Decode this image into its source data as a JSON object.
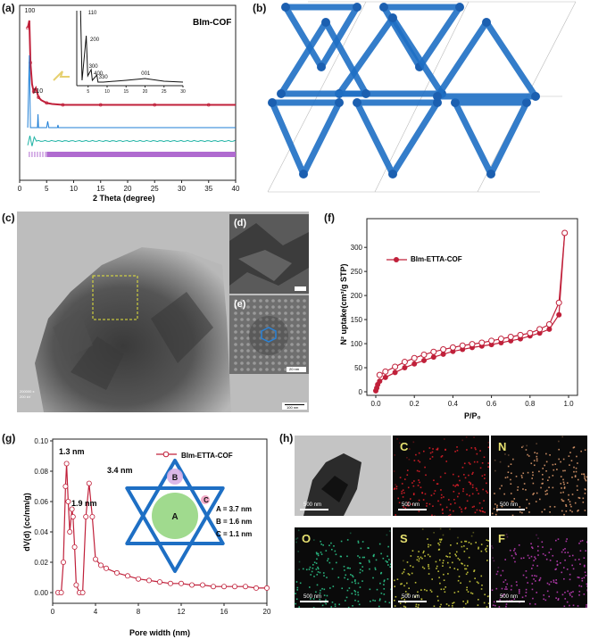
{
  "panels": {
    "a": "(a)",
    "b": "(b)",
    "c": "(c)",
    "d": "(d)",
    "e": "(e)",
    "f": "(f)",
    "g": "(g)",
    "h": "(h)"
  },
  "colors": {
    "exp": "#c0203a",
    "sim_blue": "#1f7fd6",
    "sim_teal": "#1fb3a5",
    "sim_purple": "#b06bd0",
    "framework": "#1e6fc4",
    "maps": {
      "C": "#e8202a",
      "N": "#e6a070",
      "O": "#2ecf90",
      "S": "#d8d840",
      "F": "#c83fc0"
    }
  },
  "panel_a": {
    "title": "BIm-COF",
    "xlabel": "2 Theta (degree)",
    "xticks": [
      "0",
      "5",
      "10",
      "15",
      "20",
      "25",
      "30",
      "35",
      "40"
    ],
    "peaks_main": [
      "100",
      "110"
    ],
    "inset_peaks": [
      "110",
      "200",
      "300",
      "400",
      "330",
      "001"
    ],
    "inset_xticks": [
      "5",
      "10",
      "15",
      "20",
      "25",
      "30"
    ]
  },
  "panel_e": {
    "scale": "20 nm"
  },
  "panel_d": {
    "scale": "5 nm"
  },
  "panel_c": {
    "scale": "100 nm",
    "meta1": "200000 x",
    "meta2": "200 kV"
  },
  "panel_f": {
    "legend": "BIm-ETTA-COF",
    "ylabel": "N² uptake(cm³/g STP)",
    "xlabel": "P/P₀",
    "yticks": [
      "0",
      "50",
      "100",
      "150",
      "200",
      "250",
      "300"
    ],
    "xticks": [
      "0.0",
      "0.2",
      "0.4",
      "0.6",
      "0.8",
      "1.0"
    ]
  },
  "panel_g": {
    "legend": "BIm-ETTA-COF",
    "ylabel": "dV(d) (cc/nm/g)",
    "xlabel": "Pore width (nm)",
    "yticks": [
      "0.00",
      "0.02",
      "0.04",
      "0.06",
      "0.08",
      "0.10"
    ],
    "xticks": [
      "0",
      "4",
      "8",
      "12",
      "16",
      "20"
    ],
    "annotations": [
      "1.3 nm",
      "1.9 nm",
      "3.4 nm"
    ],
    "pore_labels": {
      "A": "A",
      "B": "B",
      "C": "C"
    },
    "pore_sizes": [
      "A = 3.7 nm",
      "B = 1.6 nm",
      "C = 1.1 nm"
    ]
  },
  "panel_h": {
    "tiles": [
      "C",
      "N",
      "O",
      "S",
      "F"
    ],
    "scale": "500 nm"
  },
  "chart_data": [
    {
      "type": "line",
      "title": "BIm-COF",
      "xlabel": "2 Theta (degree)",
      "ylabel": "",
      "xlim": [
        0,
        40
      ],
      "series": [
        {
          "x": [
            1.5,
            1.8,
            2.0,
            2.3,
            2.6,
            3.0,
            3.5,
            4.0,
            5,
            6,
            8,
            10,
            15,
            20,
            25,
            30,
            35,
            40
          ],
          "y": [
            0.92,
            1.0,
            0.55,
            0.32,
            0.24,
            0.28,
            0.18,
            0.15,
            0.12,
            0.11,
            0.1,
            0.1,
            0.1,
            0.1,
            0.1,
            0.1,
            0.1,
            0.1
          ]
        }
      ]
    },
    {
      "type": "line",
      "title": "",
      "xlabel": "P/P₀",
      "ylabel": "N² uptake(cm³/g STP)",
      "xlim": [
        0,
        1.0
      ],
      "ylim": [
        0,
        330
      ],
      "series": [
        {
          "name": "BIm-ETTA-COF",
          "x": [
            0.0,
            0.005,
            0.01,
            0.02,
            0.05,
            0.1,
            0.15,
            0.2,
            0.25,
            0.3,
            0.35,
            0.4,
            0.45,
            0.5,
            0.55,
            0.6,
            0.65,
            0.7,
            0.75,
            0.8,
            0.85,
            0.9,
            0.95,
            0.98
          ],
          "y": [
            2,
            8,
            15,
            22,
            30,
            40,
            50,
            58,
            65,
            72,
            78,
            84,
            88,
            92,
            95,
            98,
            102,
            106,
            110,
            116,
            122,
            130,
            160,
            330
          ]
        },
        {
          "x": [
            0.98,
            0.95,
            0.9,
            0.85,
            0.8,
            0.75,
            0.7,
            0.65,
            0.6,
            0.55,
            0.5,
            0.45,
            0.4,
            0.35,
            0.3,
            0.25,
            0.2,
            0.15,
            0.1,
            0.05,
            0.02
          ],
          "y": [
            330,
            185,
            140,
            130,
            122,
            118,
            114,
            110,
            106,
            102,
            99,
            96,
            92,
            88,
            83,
            77,
            70,
            62,
            52,
            42,
            35
          ]
        }
      ]
    },
    {
      "type": "line",
      "title": "",
      "xlabel": "Pore width (nm)",
      "ylabel": "dV(d) (cc/nm/g)",
      "xlim": [
        0,
        20
      ],
      "ylim": [
        0,
        0.1
      ],
      "series": [
        {
          "name": "BIm-ETTA-COF",
          "x": [
            0.5,
            0.8,
            1.0,
            1.2,
            1.3,
            1.45,
            1.6,
            1.8,
            1.9,
            2.05,
            2.2,
            2.5,
            2.8,
            3.1,
            3.4,
            3.7,
            4.0,
            4.5,
            5,
            6,
            7,
            8,
            9,
            10,
            11,
            12,
            13,
            14,
            15,
            16,
            17,
            18,
            19,
            20
          ],
          "y": [
            0.0,
            0.0,
            0.02,
            0.07,
            0.085,
            0.06,
            0.04,
            0.055,
            0.05,
            0.03,
            0.005,
            0.0,
            0.0,
            0.05,
            0.072,
            0.05,
            0.022,
            0.018,
            0.016,
            0.013,
            0.011,
            0.009,
            0.008,
            0.007,
            0.006,
            0.006,
            0.005,
            0.005,
            0.004,
            0.004,
            0.004,
            0.004,
            0.003,
            0.003
          ]
        }
      ]
    }
  ]
}
